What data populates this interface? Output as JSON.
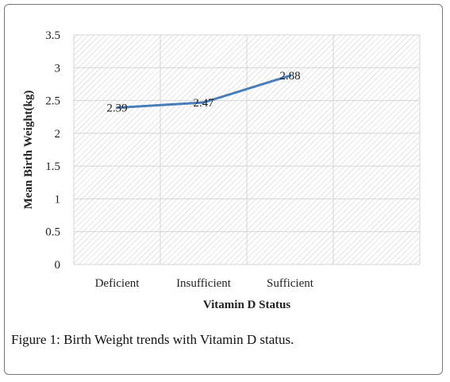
{
  "caption": {
    "label": "Figure 1:",
    "text": " Birth Weight trends with Vitamin D status."
  },
  "chart_data": {
    "type": "line",
    "title": "",
    "categories": [
      "Deficient",
      "Insufficient",
      "Sufficient"
    ],
    "series": [
      {
        "values": [
          2.39,
          2.47,
          2.88
        ],
        "color": "#4a7ebb"
      }
    ],
    "data_labels": [
      "2.39",
      "2.47",
      "2.88"
    ],
    "xlabel": "Vitamin  D Status",
    "ylabel": "Mean Birth Weight(kg)",
    "ylim": [
      0,
      3.5
    ],
    "yticks": [
      "0",
      "0.5",
      "1",
      "1.5",
      "2",
      "2.5",
      "3",
      "3.5"
    ],
    "grid": true,
    "plot_background": "diagonal-hatch"
  }
}
